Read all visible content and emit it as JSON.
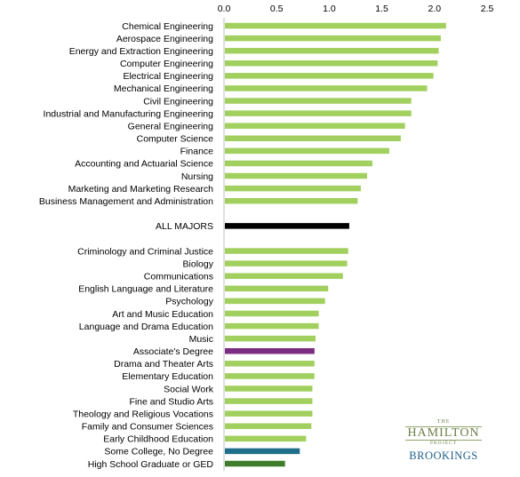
{
  "chart_data": {
    "type": "bar",
    "orientation": "horizontal",
    "title": "",
    "xlabel": "",
    "ylabel": "",
    "xlim": [
      0,
      2.5
    ],
    "xticks": [
      "0.0",
      "0.5",
      "1.0",
      "1.5",
      "2.0",
      "2.5"
    ],
    "grid": false,
    "categories": [
      "Chemical Engineering",
      "Aerospace Engineering",
      "Energy and Extraction Engineering",
      "Computer Engineering",
      "Electrical Engineering",
      "Mechanical Engineering",
      "Civil Engineering",
      "Industrial and Manufacturing Engineering",
      "General Engineering",
      "Computer Science",
      "Finance",
      "Accounting and Actuarial Science",
      "Nursing",
      "Marketing and Marketing Research",
      "Business Management and Administration",
      "",
      "ALL MAJORS",
      "",
      "Criminology and Criminal Justice",
      "Biology",
      "Communications",
      "English Language and Literature",
      "Psychology",
      "Art and Music Education",
      "Language and Drama Education",
      "Music",
      "Associate's Degree",
      "Drama and Theater Arts",
      "Elementary Education",
      "Social Work",
      "Fine and Studio Arts",
      "Theology and Religious Vocations",
      "Family and Consumer Sciences",
      "Early Childhood Education",
      "Some College, No Degree",
      "High School Graduate or GED"
    ],
    "values": [
      2.11,
      2.06,
      2.04,
      2.03,
      1.99,
      1.93,
      1.78,
      1.78,
      1.72,
      1.68,
      1.57,
      1.41,
      1.36,
      1.3,
      1.27,
      null,
      1.19,
      null,
      1.18,
      1.17,
      1.13,
      0.99,
      0.96,
      0.9,
      0.9,
      0.87,
      0.86,
      0.86,
      0.86,
      0.84,
      0.84,
      0.84,
      0.83,
      0.78,
      0.72,
      0.58
    ],
    "colors": {
      "default": "#a2d05f",
      "ALL MAJORS": "#000000",
      "Associate's Degree": "#7b2c83",
      "Some College, No Degree": "#1f6f8b",
      "High School Graduate or GED": "#3f7d2c"
    }
  },
  "logo": {
    "the": "THE",
    "hamilton": "HAMILTON",
    "project": "PROJECT",
    "brookings": "BROOKINGS"
  }
}
